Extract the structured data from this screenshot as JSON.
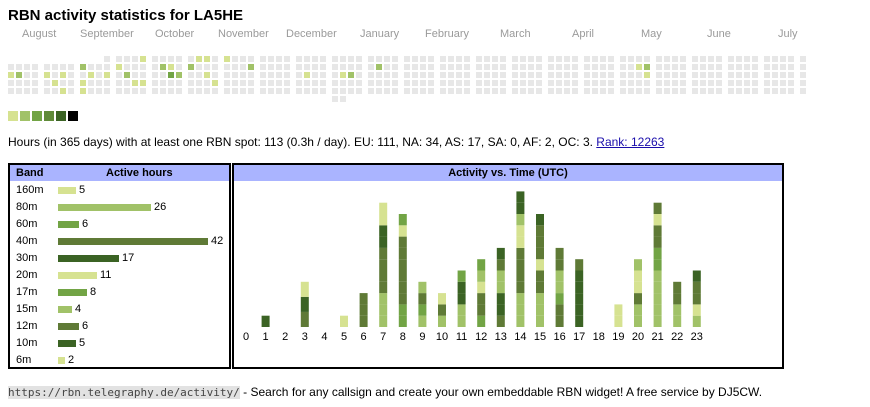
{
  "page": {
    "title": "RBN activity statistics for LA5HE"
  },
  "palette": {
    "empty": "#e7e7e7",
    "levels": [
      "#d6e291",
      "#a1c268",
      "#72a445",
      "#5f8a38",
      "#3b6324",
      "#000000"
    ],
    "selected_border": "#ff0000",
    "header_bg": "#aab4ff"
  },
  "calendar": {
    "months": [
      "August",
      "September",
      "October",
      "November",
      "December",
      "January",
      "February",
      "March",
      "April",
      "May",
      "June",
      "July"
    ],
    "weeks": [
      [
        -1,
        -1,
        0,
        1,
        0,
        0,
        -1
      ],
      [
        -1,
        -1,
        0,
        2,
        0,
        0,
        -1
      ],
      [
        -1,
        -1,
        0,
        0,
        0,
        0,
        -1
      ],
      [
        -1,
        -1,
        0,
        0,
        0,
        0,
        -1
      ],
      [
        -1,
        -1,
        0,
        1,
        0,
        0,
        -1
      ],
      [
        -1,
        -1,
        0,
        0,
        1,
        0,
        -1
      ],
      [
        -1,
        -1,
        0,
        1,
        0,
        1,
        -1
      ],
      [
        -1,
        -1,
        0,
        0,
        0,
        0,
        -1
      ],
      [
        -1,
        -1,
        2,
        0,
        1,
        1,
        -1
      ],
      [
        -1,
        -1,
        0,
        1,
        0,
        0,
        -1
      ],
      [
        -1,
        -1,
        0,
        0,
        0,
        0,
        -1
      ],
      [
        -1,
        0,
        0,
        1,
        0,
        0,
        -1
      ],
      [
        -1,
        0,
        1,
        0,
        0,
        0,
        -1
      ],
      [
        -1,
        0,
        0,
        2,
        0,
        0,
        -1
      ],
      [
        -1,
        0,
        0,
        0,
        1,
        0,
        -1
      ],
      [
        -1,
        1,
        0,
        0,
        1,
        0,
        -1
      ],
      [
        -1,
        0,
        0,
        0,
        0,
        0,
        -1
      ],
      [
        -1,
        0,
        2,
        0,
        0,
        0,
        -1
      ],
      [
        -1,
        0,
        1,
        3,
        0,
        0,
        -1
      ],
      [
        -1,
        0,
        0,
        2,
        0,
        0,
        -1
      ],
      [
        -1,
        0,
        2,
        0,
        0,
        0,
        -1
      ],
      [
        -1,
        1,
        0,
        0,
        0,
        0,
        -1
      ],
      [
        -1,
        1,
        0,
        1,
        0,
        0,
        -1
      ],
      [
        -1,
        0,
        0,
        0,
        1,
        0,
        -1
      ],
      [
        -1,
        1,
        0,
        0,
        0,
        0,
        -1
      ],
      [
        -1,
        0,
        0,
        0,
        0,
        0,
        -1
      ],
      [
        -1,
        0,
        0,
        0,
        0,
        0,
        -1
      ],
      [
        -1,
        0,
        2,
        0,
        0,
        0,
        -1
      ],
      [
        -1,
        0,
        0,
        0,
        0,
        0,
        -1
      ],
      [
        -1,
        0,
        0,
        0,
        0,
        0,
        -1
      ],
      [
        -1,
        0,
        0,
        0,
        0,
        0,
        -1
      ],
      [
        -1,
        0,
        0,
        0,
        0,
        0,
        -1
      ],
      [
        -1,
        0,
        0,
        0,
        0,
        0,
        -1
      ],
      [
        -1,
        0,
        0,
        1,
        0,
        0,
        -1
      ],
      [
        -1,
        0,
        0,
        0,
        0,
        0,
        -1
      ],
      [
        -1,
        0,
        0,
        0,
        0,
        0,
        -1
      ],
      [
        -1,
        0,
        0,
        0,
        0,
        0,
        0
      ],
      [
        -1,
        0,
        0,
        1,
        0,
        0,
        0
      ],
      [
        -1,
        0,
        0,
        2,
        0,
        0,
        -1
      ],
      [
        -1,
        0,
        0,
        0,
        0,
        0,
        -1
      ],
      [
        -1,
        0,
        0,
        0,
        0,
        0,
        -1
      ],
      [
        -1,
        0,
        2,
        0,
        0,
        0,
        -1
      ],
      [
        -1,
        0,
        0,
        0,
        0,
        0,
        -1
      ],
      [
        -1,
        0,
        0,
        0,
        0,
        0,
        -1
      ],
      [
        -1,
        0,
        0,
        0,
        0,
        0,
        -1
      ],
      [
        -1,
        0,
        0,
        0,
        0,
        0,
        -1
      ],
      [
        -1,
        0,
        0,
        0,
        0,
        0,
        -1
      ],
      [
        -1,
        0,
        0,
        0,
        0,
        0,
        -1
      ],
      [
        -1,
        0,
        0,
        0,
        0,
        0,
        -1
      ],
      [
        -1,
        0,
        0,
        0,
        0,
        0,
        -1
      ],
      [
        -1,
        0,
        0,
        0,
        0,
        0,
        -1
      ],
      [
        -1,
        0,
        0,
        0,
        0,
        0,
        -1
      ],
      [
        -1,
        0,
        0,
        0,
        0,
        0,
        -1
      ],
      [
        -1,
        0,
        0,
        0,
        0,
        0,
        -1
      ],
      [
        -1,
        0,
        0,
        0,
        0,
        0,
        -1
      ],
      [
        -1,
        0,
        0,
        0,
        0,
        0,
        -1
      ],
      [
        -1,
        0,
        0,
        0,
        0,
        0,
        -1
      ],
      [
        -1,
        0,
        0,
        0,
        0,
        0,
        -1
      ],
      [
        -1,
        0,
        0,
        0,
        0,
        0,
        -1
      ],
      [
        -1,
        0,
        0,
        0,
        0,
        0,
        -1
      ],
      [
        -1,
        0,
        0,
        0,
        0,
        0,
        -1
      ],
      [
        -1,
        0,
        0,
        0,
        0,
        0,
        -1
      ],
      [
        -1,
        0,
        0,
        0,
        0,
        0,
        -1
      ],
      [
        -1,
        0,
        0,
        0,
        0,
        0,
        -1
      ],
      [
        -1,
        0,
        0,
        0,
        0,
        0,
        -1
      ],
      [
        -1,
        0,
        0,
        0,
        0,
        0,
        -1
      ],
      [
        -1,
        0,
        0,
        0,
        0,
        0,
        -1
      ],
      [
        -1,
        0,
        0,
        0,
        0,
        0,
        -1
      ],
      [
        -1,
        0,
        0,
        0,
        0,
        0,
        -1
      ],
      [
        -1,
        0,
        0,
        0,
        0,
        0,
        -1
      ],
      [
        -1,
        0,
        1,
        0,
        0,
        0,
        -1
      ],
      [
        -1,
        0,
        2,
        1,
        0,
        0,
        -1
      ],
      [
        -1,
        0,
        0,
        0,
        0,
        0,
        -1
      ],
      [
        -1,
        0,
        0,
        0,
        0,
        0,
        -1
      ],
      [
        -1,
        0,
        0,
        0,
        0,
        0,
        -1
      ],
      [
        -1,
        0,
        0,
        0,
        0,
        0,
        -1
      ],
      [
        -1,
        0,
        0,
        0,
        0,
        0,
        -1
      ],
      [
        -1,
        0,
        0,
        0,
        0,
        0,
        -1
      ],
      [
        -1,
        0,
        0,
        0,
        0,
        0,
        -1
      ],
      [
        -1,
        0,
        0,
        0,
        0,
        0,
        -1
      ],
      [
        -1,
        0,
        0,
        0,
        0,
        0,
        -1
      ],
      [
        -1,
        0,
        0,
        0,
        0,
        0,
        -1
      ],
      [
        -1,
        0,
        0,
        0,
        0,
        0,
        -1
      ],
      [
        -1,
        0,
        0,
        0,
        0,
        0,
        -1
      ],
      [
        -1,
        0,
        0,
        0,
        0,
        0,
        -1
      ],
      [
        -1,
        0,
        0,
        0,
        0,
        0,
        -1
      ],
      [
        -1,
        0,
        0,
        0,
        0,
        0,
        -1
      ],
      [
        -1,
        0,
        0,
        0,
        0,
        0,
        -1
      ],
      [
        -1,
        0,
        0,
        0,
        0,
        0,
        -1
      ],
      [
        -1,
        0,
        0,
        0,
        0,
        0,
        -1
      ],
      [
        -1,
        0,
        0,
        0,
        0,
        0,
        -1
      ],
      [
        -1,
        0,
        0,
        0,
        0,
        0,
        -1
      ],
      [
        -1,
        0,
        0,
        0,
        0,
        0,
        -1
      ],
      [
        -1,
        0,
        0,
        0,
        0,
        0,
        -1
      ],
      [
        -1,
        0,
        0,
        0,
        0,
        0,
        -1
      ],
      [
        -1,
        0,
        0,
        0,
        0,
        0,
        -1
      ],
      [
        -1,
        0,
        0,
        0,
        0,
        0,
        -1
      ],
      [
        -1,
        0,
        0,
        0,
        0,
        0,
        -1
      ],
      [
        -1,
        0,
        0,
        0,
        0,
        0,
        -1
      ],
      [
        -1,
        0,
        0,
        0,
        0,
        0,
        -1
      ],
      [
        -1,
        0,
        0,
        0,
        0,
        0,
        -1
      ],
      [
        -1,
        0,
        0,
        0,
        0,
        0,
        -1
      ],
      [
        -1,
        0,
        0,
        0,
        0,
        0,
        -1
      ],
      [
        -1,
        0,
        0,
        0,
        0,
        0,
        -1
      ],
      [
        -1,
        0,
        0,
        0,
        0,
        0,
        -1
      ],
      [
        -1,
        0,
        0,
        0,
        0,
        0,
        -1
      ],
      [
        -1,
        0,
        0,
        0,
        0,
        0,
        -1
      ],
      [
        -1,
        0,
        0,
        0,
        0,
        0,
        -1
      ],
      [
        -1,
        0,
        0,
        0,
        0,
        0,
        -1
      ],
      [
        -1,
        0,
        0,
        0,
        0,
        0,
        -1
      ],
      [
        -1,
        0,
        0,
        0,
        0,
        0,
        -1
      ],
      [
        -1,
        0,
        0,
        0,
        0,
        0,
        -1
      ],
      [
        -1,
        0,
        0,
        0,
        0,
        0,
        -1
      ],
      [
        -1,
        0,
        0,
        0,
        0,
        0,
        -1
      ],
      [
        -1,
        0,
        0,
        0,
        0,
        0,
        -1
      ],
      [
        -1,
        0,
        0,
        0,
        0,
        0,
        -1
      ],
      [
        -1,
        0,
        0,
        0,
        0,
        0,
        -1
      ],
      [
        -1,
        0,
        0,
        0,
        0,
        0,
        -1
      ],
      [
        -1,
        0,
        0,
        0,
        0,
        0,
        -1
      ],
      [
        -1,
        0,
        0,
        0,
        0,
        0,
        -1
      ]
    ],
    "selected_day": [
      93,
      2
    ],
    "legend_levels": [
      1,
      2,
      3,
      4,
      5,
      6
    ]
  },
  "summary": {
    "text": "Hours (in 365 days) with at least one RBN spot: 113 (0.3h / day). EU: 111, NA: 34, AS: 17, SA: 0, AF: 2, OC: 3.",
    "rank_link": "Rank: 12263"
  },
  "band_table": {
    "col_band": "Band",
    "col_hours": "Active hours",
    "rows": [
      {
        "band": "160m",
        "hours": 5,
        "label": "5",
        "color": "#d6e291"
      },
      {
        "band": "80m",
        "hours": 26,
        "label": "26",
        "color": "#a1c268"
      },
      {
        "band": "60m",
        "hours": 6,
        "label": "6",
        "color": "#72a445"
      },
      {
        "band": "40m",
        "hours": 42,
        "label": "42",
        "color": "#5f7a36"
      },
      {
        "band": "30m",
        "hours": 17,
        "label": "17",
        "color": "#3b6324"
      },
      {
        "band": "20m",
        "hours": 11,
        "label": "11",
        "color": "#d6e291"
      },
      {
        "band": "17m",
        "hours": 8,
        "label": "8",
        "color": "#72a445"
      },
      {
        "band": "15m",
        "hours": 4,
        "label": "4",
        "color": "#a1c268"
      },
      {
        "band": "12m",
        "hours": 6,
        "label": "6",
        "color": "#5f7a36"
      },
      {
        "band": "10m",
        "hours": 5,
        "label": "5",
        "color": "#3b6324"
      },
      {
        "band": "6m",
        "hours": 2,
        "label": "2",
        "color": "#d6e291"
      }
    ]
  },
  "chart_data": {
    "type": "bar",
    "stacked": true,
    "title": "Activity vs. Time (UTC)",
    "xlabel": "",
    "ylabel": "",
    "categories": [
      "0",
      "1",
      "2",
      "3",
      "4",
      "5",
      "6",
      "7",
      "8",
      "9",
      "10",
      "11",
      "12",
      "13",
      "14",
      "15",
      "16",
      "17",
      "18",
      "19",
      "20",
      "21",
      "22",
      "23"
    ],
    "hours_values": [
      0,
      1,
      0,
      4,
      0,
      1,
      3,
      11,
      10,
      4,
      3,
      5,
      6,
      7,
      12,
      10,
      7,
      6,
      0,
      2,
      6,
      11,
      4,
      5
    ],
    "segment_palette": [
      "#d6e291",
      "#a1c268",
      "#72a445",
      "#5f7a36",
      "#3b6324"
    ],
    "series_segments": [
      [],
      [
        4
      ],
      [],
      [
        3,
        4,
        0
      ],
      [],
      [
        0
      ],
      [
        3,
        3,
        3
      ],
      [
        1,
        1,
        1,
        3,
        3,
        3,
        3,
        4,
        4,
        0,
        0
      ],
      [
        2,
        2,
        3,
        3,
        3,
        3,
        3,
        3,
        0,
        2
      ],
      [
        1,
        2,
        3,
        1
      ],
      [
        1,
        3,
        0
      ],
      [
        1,
        1,
        4,
        4,
        2
      ],
      [
        2,
        3,
        3,
        0,
        1,
        2
      ],
      [
        3,
        4,
        4,
        1,
        1,
        3,
        4
      ],
      [
        1,
        1,
        1,
        3,
        3,
        3,
        3,
        0,
        0,
        1,
        4,
        4
      ],
      [
        1,
        1,
        1,
        3,
        3,
        0,
        3,
        3,
        3,
        4
      ],
      [
        3,
        3,
        2,
        1,
        1,
        3,
        3
      ],
      [
        4,
        4,
        4,
        4,
        4,
        3
      ],
      [],
      [
        0,
        0
      ],
      [
        1,
        1,
        3,
        0,
        0,
        1
      ],
      [
        1,
        1,
        1,
        1,
        1,
        2,
        2,
        3,
        3,
        0,
        3
      ],
      [
        1,
        1,
        3,
        3
      ],
      [
        1,
        0,
        3,
        3,
        4
      ]
    ]
  },
  "footer": {
    "url": "https://rbn.telegraphy.de/activity/",
    "text": " - Search for any callsign and create your own embeddable RBN widget! A free service by DJ5CW."
  }
}
